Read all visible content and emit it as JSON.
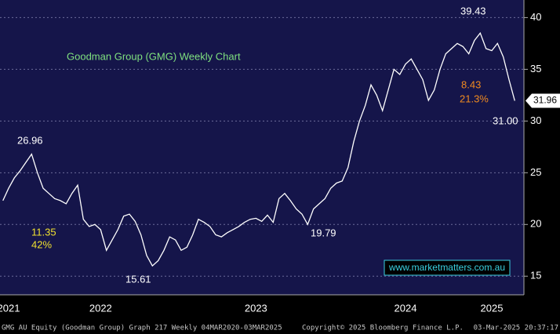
{
  "chart_data": {
    "type": "line",
    "title": "Goodman Group (GMG) Weekly Chart",
    "watermark": "www.marketmatters.com.au",
    "footer": [
      "GMG AU Equity (Goodman Group) Graph 217  Weekly 04MAR2020-03MAR2025",
      "Copyright© 2025 Bloomberg Finance L.P.",
      "03-Mar-2025 20:37:17"
    ],
    "annotations": [
      {
        "text": "26.96",
        "color": "#ffffff"
      },
      {
        "text": "11.35",
        "color": "#f0e030"
      },
      {
        "text": "42%",
        "color": "#f0e030"
      },
      {
        "text": "15.61",
        "color": "#ffffff"
      },
      {
        "text": "19.79",
        "color": "#ffffff"
      },
      {
        "text": "39.43",
        "color": "#ffffff"
      },
      {
        "text": "8.43",
        "color": "#f08a20"
      },
      {
        "text": "21.3%",
        "color": "#f08a20"
      },
      {
        "text": "31.00",
        "color": "#ffffff"
      }
    ],
    "categories": [
      null,
      "2021",
      null,
      null,
      null,
      null,
      null,
      null,
      null,
      null,
      null,
      null,
      null,
      null,
      null,
      null,
      null,
      "2022",
      null,
      null,
      null,
      null,
      null,
      null,
      null,
      null,
      null,
      null,
      null,
      null,
      null,
      null,
      null,
      null,
      null,
      null,
      null,
      null,
      null,
      null,
      null,
      null,
      null,
      null,
      "2023",
      null,
      null,
      null,
      null,
      null,
      null,
      null,
      null,
      null,
      null,
      null,
      null,
      null,
      null,
      null,
      null,
      null,
      null,
      null,
      null,
      null,
      null,
      null,
      null,
      null,
      "2024",
      null,
      null,
      null,
      null,
      null,
      null,
      null,
      null,
      null,
      null,
      null,
      null,
      null,
      null,
      "2025",
      null,
      null,
      null,
      null
    ],
    "values": [
      22.3,
      23.5,
      24.5,
      25.2,
      26.0,
      26.8,
      25.0,
      23.5,
      23.0,
      22.5,
      22.3,
      22.0,
      23.0,
      23.8,
      20.5,
      19.8,
      20.0,
      19.5,
      17.5,
      18.5,
      19.5,
      20.8,
      21.0,
      20.3,
      19.0,
      17.0,
      16.0,
      16.5,
      17.5,
      18.8,
      18.5,
      17.5,
      17.8,
      19.0,
      20.5,
      20.2,
      19.8,
      19.0,
      18.8,
      19.2,
      19.5,
      19.8,
      20.2,
      20.5,
      20.6,
      20.3,
      20.9,
      20.2,
      22.5,
      23.0,
      22.3,
      21.5,
      21.0,
      20.0,
      21.5,
      22.0,
      22.5,
      23.5,
      24.0,
      24.2,
      25.5,
      28.0,
      30.0,
      31.5,
      33.5,
      32.5,
      31.0,
      33.0,
      35.0,
      34.5,
      35.5,
      36.0,
      35.0,
      34.0,
      32.0,
      33.0,
      35.0,
      36.5,
      37.0,
      37.5,
      37.2,
      36.5,
      37.8,
      38.5,
      37.0,
      36.8,
      37.5,
      36.2,
      34.0,
      31.96
    ],
    "color": "#ffffff",
    "ylim": [
      13.2,
      41.7
    ],
    "yticks": [
      15,
      20,
      25,
      30,
      35,
      40
    ],
    "grid": true
  }
}
